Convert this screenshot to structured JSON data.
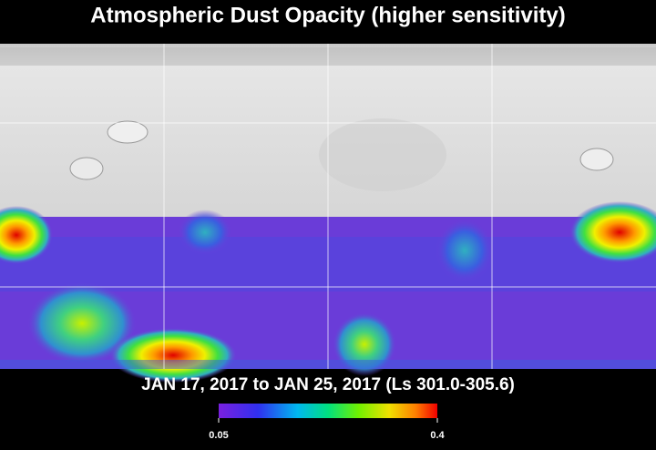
{
  "title": "Atmospheric Dust Opacity (higher sensitivity)",
  "period": "JAN 17, 2017 to JAN 25, 2017 (Ls 301.0-305.6)",
  "colorbar": {
    "min": 0.05,
    "max": 0.4
  }
}
